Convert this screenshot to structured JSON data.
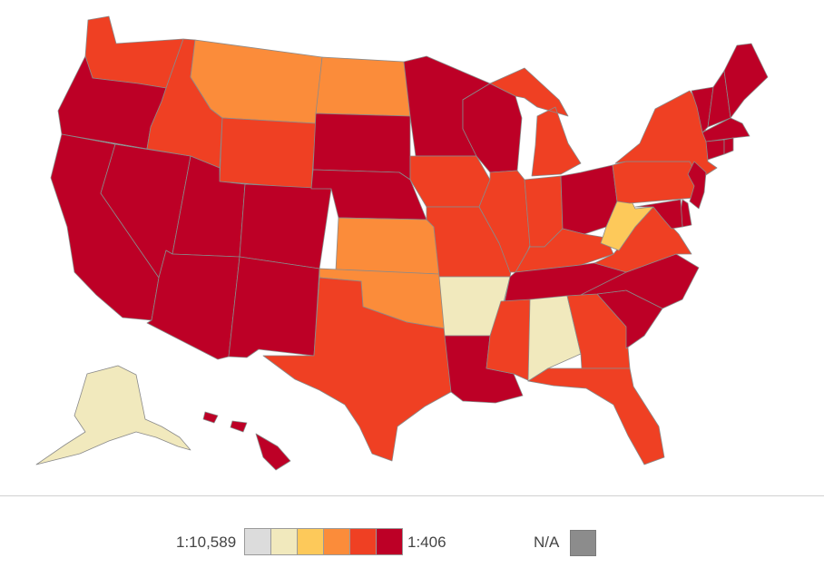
{
  "colors": {
    "c0": "#dcdcdc",
    "c1": "#f1e9bd",
    "c2": "#fdc95a",
    "c3": "#fb8c3a",
    "c4": "#ef4023",
    "c5": "#bd0026",
    "na": "#8c8c8c"
  },
  "legend": {
    "min_label": "1:10,589",
    "max_label": "1:406",
    "na_label": "N/A",
    "swatch_names": [
      "legend-swatch-0",
      "legend-swatch-1",
      "legend-swatch-2",
      "legend-swatch-3",
      "legend-swatch-4",
      "legend-swatch-5"
    ]
  },
  "states": {
    "WA": "c4",
    "OR": "c5",
    "CA": "c5",
    "NV": "c5",
    "ID": "c4",
    "MT": "c3",
    "WY": "c4",
    "UT": "c5",
    "AZ": "c5",
    "CO": "c5",
    "NM": "c5",
    "ND": "c3",
    "SD": "c5",
    "NE": "c5",
    "KS": "c3",
    "OK": "c3",
    "TX": "c4",
    "MN": "c5",
    "IA": "c4",
    "MO": "c4",
    "AR": "c1",
    "LA": "c5",
    "WI": "c5",
    "IL": "c4",
    "MI": "c4",
    "IN": "c4",
    "OH": "c5",
    "KY": "c4",
    "TN": "c5",
    "MS": "c4",
    "AL": "c1",
    "GA": "c4",
    "FL": "c4",
    "SC": "c5",
    "NC": "c5",
    "VA": "c4",
    "WV": "c2",
    "PA": "c4",
    "NY": "c4",
    "ME": "c5",
    "VT": "c5",
    "NH": "c5",
    "MA": "c5",
    "CT": "c5",
    "RI": "c5",
    "NJ": "c5",
    "DE": "c5",
    "MD": "c5",
    "AK": "c1",
    "HI": "c5"
  }
}
